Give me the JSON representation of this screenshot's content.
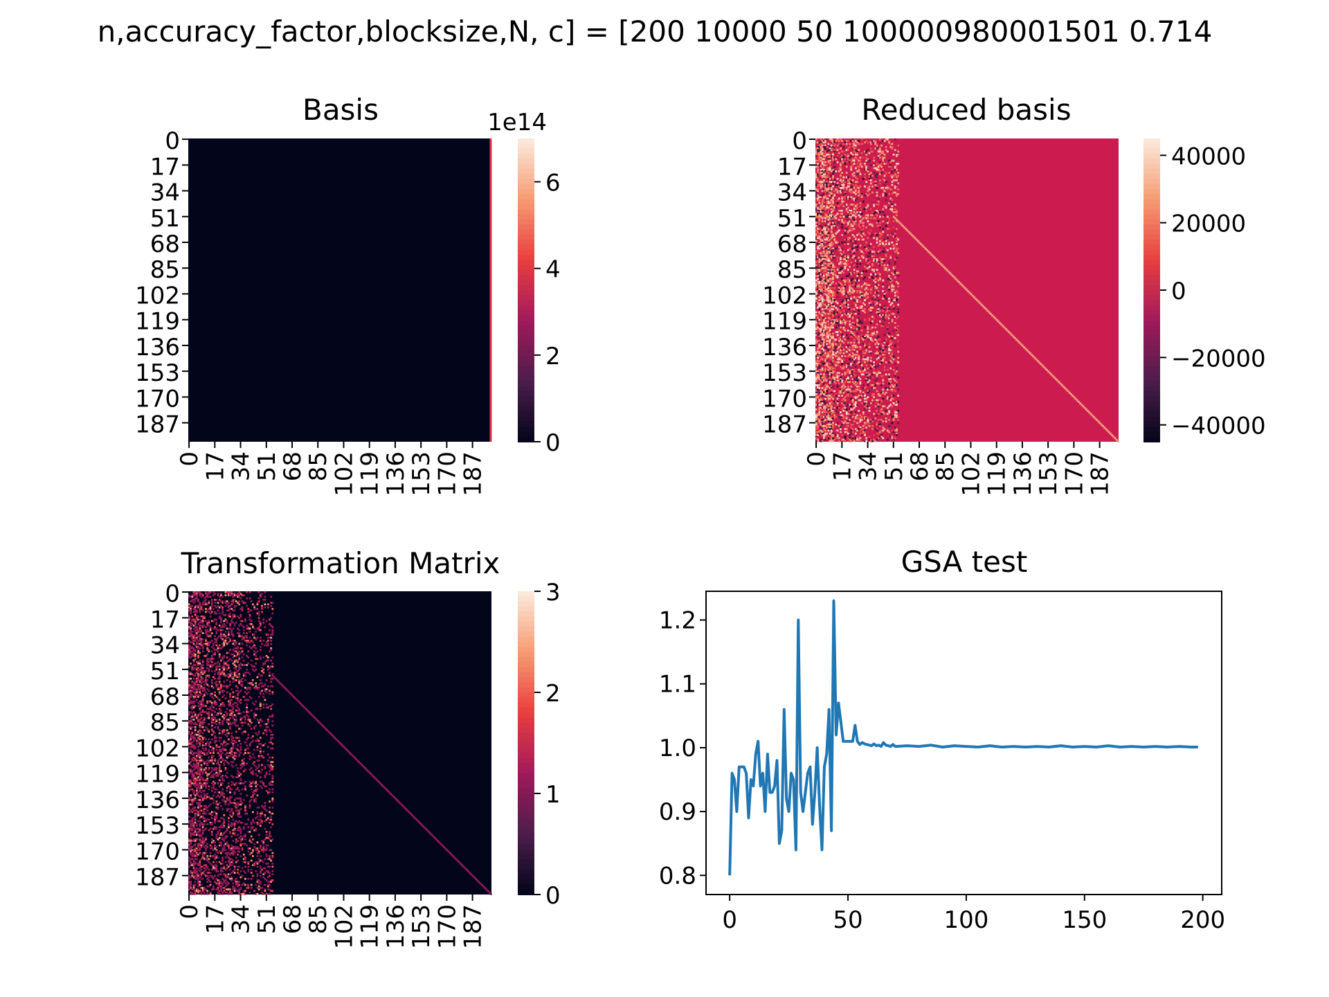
{
  "suptitle": "n,accuracy_factor,blocksize,N, c] = [200 10000 50 100000980001501 0.714",
  "colors": {
    "line": "#1f77b4",
    "rocket": [
      "#03051a",
      "#4c1d4b",
      "#a11a5b",
      "#e83f3f",
      "#f69c73",
      "#faebdd"
    ],
    "heat_background_basis": "#03051a",
    "heat_background_reduced": "#cb1b4f",
    "heat_background_transform": "#03051a"
  },
  "heatmap_ticks": [
    "0",
    "17",
    "34",
    "51",
    "68",
    "85",
    "102",
    "119",
    "136",
    "153",
    "170",
    "187"
  ],
  "chart_data": [
    {
      "type": "heatmap",
      "title": "Basis",
      "rows": 200,
      "cols": 200,
      "row_ticks": [
        "0",
        "17",
        "34",
        "51",
        "68",
        "85",
        "102",
        "119",
        "136",
        "153",
        "170",
        "187"
      ],
      "col_ticks": [
        "0",
        "17",
        "34",
        "51",
        "68",
        "85",
        "102",
        "119",
        "136",
        "153",
        "170",
        "187"
      ],
      "colorbar": {
        "min": 0,
        "max": 7,
        "ticks": [
          "0",
          "2",
          "4",
          "6"
        ],
        "offset_label": "1e14"
      },
      "description_values": {
        "background": 0,
        "last_column": "nonzero (up to ~7e14)"
      }
    },
    {
      "type": "heatmap",
      "title": "Reduced basis",
      "rows": 200,
      "cols": 200,
      "row_ticks": [
        "0",
        "17",
        "34",
        "51",
        "68",
        "85",
        "102",
        "119",
        "136",
        "153",
        "170",
        "187"
      ],
      "col_ticks": [
        "0",
        "17",
        "34",
        "51",
        "68",
        "85",
        "102",
        "119",
        "136",
        "153",
        "170",
        "187"
      ],
      "colorbar": {
        "min": -45000,
        "max": 45000,
        "ticks": [
          "40000",
          "20000",
          "0",
          "−20000",
          "−40000"
        ]
      },
      "description_values": {
        "background": 0,
        "dense_block_cols": [
          0,
          50
        ],
        "diagonal_from_row": 51
      }
    },
    {
      "type": "heatmap",
      "title": "Transformation Matrix",
      "rows": 200,
      "cols": 200,
      "row_ticks": [
        "0",
        "17",
        "34",
        "51",
        "68",
        "85",
        "102",
        "119",
        "136",
        "153",
        "170",
        "187"
      ],
      "col_ticks": [
        "0",
        "17",
        "34",
        "51",
        "68",
        "85",
        "102",
        "119",
        "136",
        "153",
        "170",
        "187"
      ],
      "colorbar": {
        "min": 0,
        "max": 3,
        "ticks": [
          "0",
          "1",
          "2",
          "3"
        ]
      },
      "description_values": {
        "background": 0,
        "dense_block_cols": [
          0,
          55
        ],
        "diagonal_value": 1,
        "diagonal_from_row": 55
      }
    },
    {
      "type": "line",
      "title": "GSA test",
      "xlim": [
        -10,
        208
      ],
      "ylim": [
        0.77,
        1.245
      ],
      "xticks": [
        "0",
        "50",
        "100",
        "150",
        "200"
      ],
      "yticks": [
        "0.8",
        "0.9",
        "1.0",
        "1.1",
        "1.2"
      ],
      "series": [
        {
          "x": [
            0,
            1,
            2,
            3,
            4,
            5,
            6,
            7,
            8,
            9,
            10,
            11,
            12,
            13,
            14,
            15,
            16,
            17,
            18,
            19,
            20,
            21,
            22,
            23,
            24,
            25,
            26,
            27,
            28,
            29,
            30,
            31,
            32,
            33,
            34,
            35,
            36,
            37,
            38,
            39,
            40,
            41,
            42,
            43,
            44,
            45,
            46,
            47,
            48,
            49,
            50,
            51,
            52,
            53,
            54,
            55,
            56,
            57,
            58,
            59,
            60,
            61,
            62,
            63,
            64,
            65,
            66,
            67,
            68,
            69,
            70,
            75,
            80,
            85,
            90,
            95,
            100,
            105,
            110,
            115,
            120,
            125,
            130,
            135,
            140,
            145,
            150,
            155,
            160,
            165,
            170,
            175,
            180,
            185,
            190,
            195,
            198
          ],
          "y": [
            0.8,
            0.96,
            0.95,
            0.9,
            0.97,
            0.97,
            0.97,
            0.96,
            0.89,
            0.95,
            0.94,
            0.99,
            1.01,
            0.94,
            0.96,
            0.9,
            0.99,
            0.93,
            0.93,
            0.94,
            0.98,
            0.85,
            0.87,
            1.06,
            0.92,
            0.9,
            0.96,
            0.95,
            0.84,
            1.2,
            0.93,
            0.9,
            0.93,
            0.96,
            0.97,
            0.88,
            0.93,
            1.0,
            0.91,
            0.84,
            0.97,
            0.99,
            1.06,
            0.87,
            1.23,
            1.02,
            1.07,
            1.04,
            1.01,
            1.01,
            1.01,
            1.01,
            1.01,
            1.035,
            1.01,
            1.005,
            1.008,
            1.006,
            1.005,
            1.004,
            1.003,
            1.006,
            1.003,
            1.004,
            1.002,
            1.008,
            1.004,
            1.003,
            1.002,
            1.005,
            1.002,
            1.003,
            1.002,
            1.004,
            1.001,
            1.003,
            1.002,
            1.001,
            1.003,
            1.001,
            1.002,
            1.001,
            1.002,
            1.001,
            1.003,
            1.001,
            1.002,
            1.001,
            1.003,
            1.001,
            1.002,
            1.001,
            1.002,
            1.001,
            1.002,
            1.001,
            1.001
          ]
        }
      ]
    }
  ]
}
